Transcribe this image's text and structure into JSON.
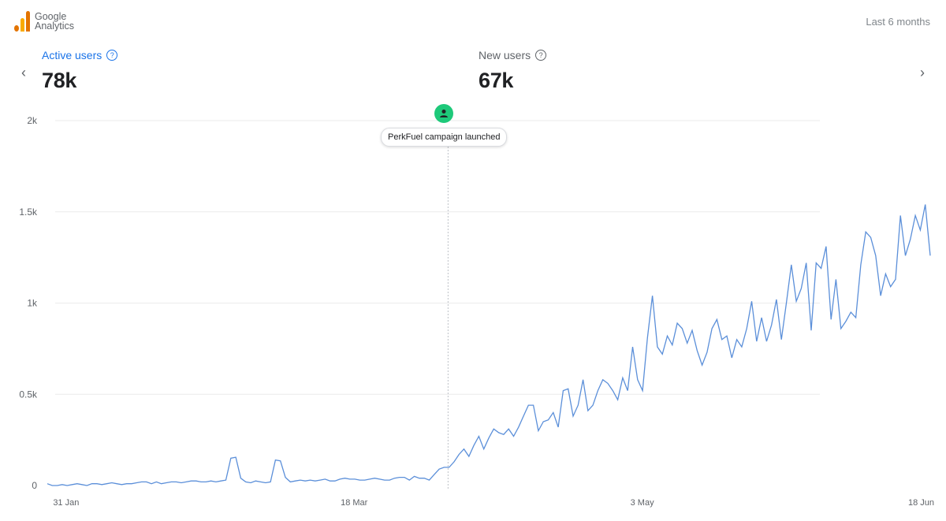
{
  "logo": {
    "line1": "Google",
    "line2": "Analytics",
    "icon": "analytics-bars-icon"
  },
  "date_range": "Last 6 months",
  "nav": {
    "prev_icon": "chevron-left-icon",
    "next_icon": "chevron-right-icon",
    "prev_glyph": "‹",
    "next_glyph": "›"
  },
  "metrics": [
    {
      "label": "Active users",
      "value": "78k",
      "help_icon": "help-circle-icon",
      "help_glyph": "?"
    },
    {
      "label": "New users",
      "value": "67k",
      "help_icon": "help-circle-icon",
      "help_glyph": "?"
    }
  ],
  "annotation": {
    "label": "PerkFuel campaign launched",
    "date": "2023-04-02",
    "icon": "person-icon"
  },
  "colors": {
    "accent": "#1a73e8",
    "line": "#5b8fd9",
    "annotation": "#1ec97a",
    "grid": "#ebebeb"
  },
  "chart_data": {
    "type": "line",
    "x_ticks": [
      "31 Jan",
      "18 Mar",
      "3 May",
      "18 Jun"
    ],
    "y_ticks": [
      "0",
      "0.5k",
      "1k",
      "1.5k",
      "2k"
    ],
    "ylim": [
      0,
      2000
    ],
    "start_date": "2023-01-28",
    "end_date": "2023-06-18",
    "grid": true,
    "series": [
      {
        "name": "",
        "values": [
          10,
          0,
          0,
          5,
          0,
          5,
          10,
          5,
          0,
          10,
          10,
          5,
          10,
          15,
          10,
          5,
          10,
          10,
          15,
          20,
          20,
          10,
          20,
          10,
          15,
          20,
          20,
          15,
          20,
          25,
          25,
          20,
          20,
          25,
          20,
          25,
          30,
          150,
          155,
          40,
          20,
          15,
          25,
          20,
          15,
          20,
          140,
          135,
          45,
          20,
          25,
          30,
          25,
          30,
          25,
          30,
          35,
          25,
          25,
          35,
          40,
          35,
          35,
          30,
          30,
          35,
          40,
          35,
          30,
          30,
          40,
          45,
          45,
          30,
          50,
          40,
          40,
          30,
          60,
          90,
          100,
          100,
          130,
          170,
          200,
          160,
          220,
          270,
          200,
          260,
          310,
          290,
          280,
          310,
          270,
          320,
          380,
          440,
          440,
          300,
          350,
          360,
          400,
          320,
          520,
          530,
          380,
          440,
          580,
          410,
          440,
          520,
          580,
          560,
          520,
          470,
          590,
          520,
          760,
          580,
          520,
          810,
          1040,
          760,
          720,
          820,
          770,
          890,
          860,
          780,
          850,
          740,
          660,
          730,
          860,
          910,
          800,
          820,
          700,
          800,
          760,
          860,
          1010,
          790,
          920,
          790,
          880,
          1020,
          800,
          1000,
          1210,
          1010,
          1080,
          1220,
          850,
          1220,
          1190,
          1310,
          910,
          1130,
          860,
          900,
          950,
          920,
          1210,
          1390,
          1360,
          1260,
          1040,
          1160,
          1090,
          1130,
          1480,
          1260,
          1350,
          1480,
          1400,
          1540,
          1260
        ]
      }
    ]
  }
}
